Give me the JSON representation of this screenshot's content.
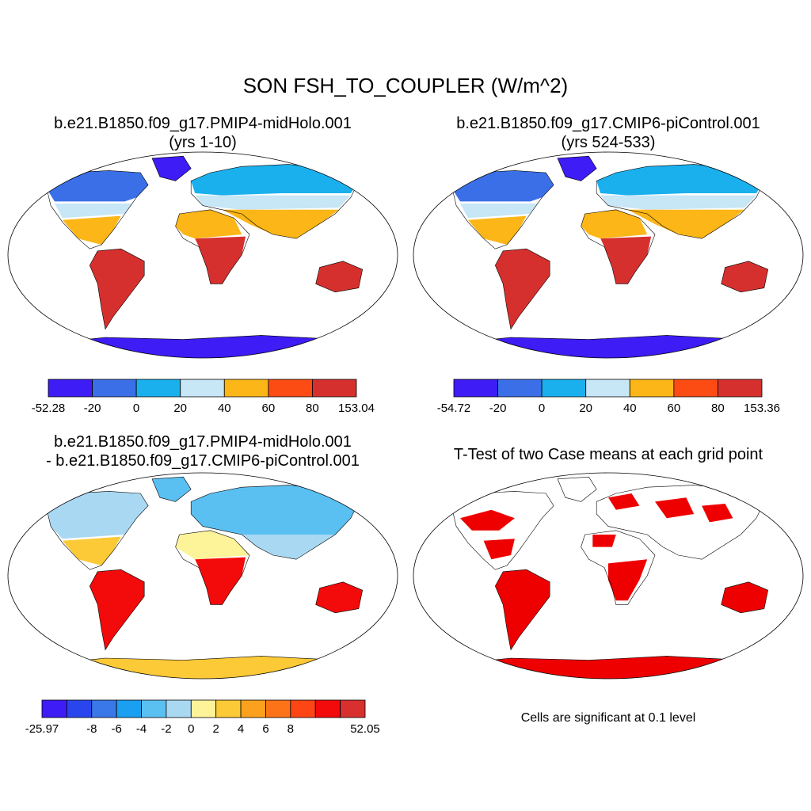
{
  "figure": {
    "main_title": "SON FSH_TO_COUPLER (W/m^2)"
  },
  "panels": [
    {
      "id": "case1",
      "title_line1": "b.e21.B1850.f09_g17.PMIP4-midHolo.001",
      "title_line2": "(yrs 1-10)",
      "colorbar": {
        "colors": [
          "#3d1cf5",
          "#3a6fe8",
          "#1ab0ee",
          "#c7e6f6",
          "#fcb617",
          "#fd4b14",
          "#d6302e"
        ],
        "labels": [
          "-52.28",
          "-20",
          "0",
          "20",
          "40",
          "60",
          "80",
          "153.04"
        ]
      }
    },
    {
      "id": "case2",
      "title_line1": "b.e21.B1850.f09_g17.CMIP6-piControl.001",
      "title_line2": "(yrs 524-533)",
      "colorbar": {
        "colors": [
          "#3d1cf5",
          "#3a6fe8",
          "#1ab0ee",
          "#c7e6f6",
          "#fcb617",
          "#fd4b14",
          "#d6302e"
        ],
        "labels": [
          "-54.72",
          "-20",
          "0",
          "20",
          "40",
          "60",
          "80",
          "153.36"
        ]
      }
    },
    {
      "id": "diff",
      "title_line1": "b.e21.B1850.f09_g17.PMIP4-midHolo.001",
      "title_line2": "- b.e21.B1850.f09_g17.CMIP6-piControl.001",
      "colorbar": {
        "colors": [
          "#3d1cf5",
          "#2946ee",
          "#3a78ea",
          "#1b9ff0",
          "#5ac0f2",
          "#a9d8f2",
          "#fdf49a",
          "#fcc937",
          "#fca11e",
          "#fd7418",
          "#fd4516",
          "#f30a0a",
          "#d8302e"
        ],
        "labels": [
          "-25.97",
          "-8",
          "-6",
          "-4",
          "-2",
          "0",
          "2",
          "4",
          "6",
          "8",
          "52.05"
        ]
      }
    },
    {
      "id": "ttest",
      "title_line1": "T-Test of two Case means at each grid point",
      "note": "Cells are significant at 0.1 level",
      "significant_color": "#ee0000"
    }
  ]
}
